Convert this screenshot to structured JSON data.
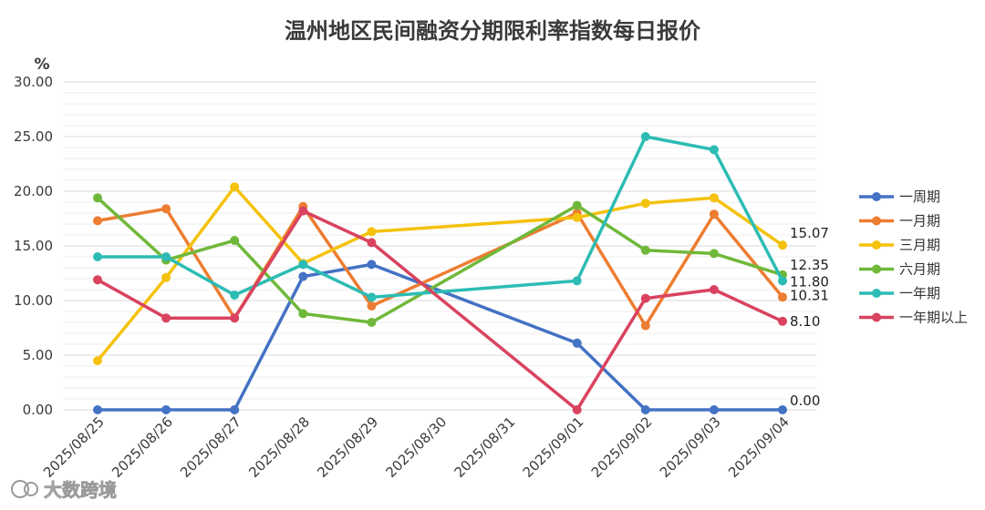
{
  "chart_data": {
    "type": "line",
    "title": "温州地区民间融资分期限利率指数每日报价",
    "ylabel": "%",
    "xlabel": "",
    "ylim": [
      0,
      30
    ],
    "yticks": [
      "0.00",
      "5.00",
      "10.00",
      "15.00",
      "20.00",
      "25.00",
      "30.00"
    ],
    "categories": [
      "2025/08/25",
      "2025/08/26",
      "2025/08/27",
      "2025/08/28",
      "2025/08/29",
      "2025/08/30",
      "2025/08/31",
      "2025/09/01",
      "2025/09/02",
      "2025/09/03",
      "2025/09/04"
    ],
    "grid": true,
    "legend_position": "right",
    "series": [
      {
        "name": "一周期",
        "color": "#4472c4",
        "values": [
          0,
          0,
          0,
          12.2,
          13.3,
          null,
          null,
          6.1,
          0,
          0,
          0
        ],
        "end_label": "0.00"
      },
      {
        "name": "一月期",
        "color": "#ed7d31",
        "values": [
          17.3,
          18.4,
          8.4,
          18.6,
          9.5,
          null,
          null,
          18.0,
          7.7,
          17.9,
          10.31
        ],
        "end_label": "10.31"
      },
      {
        "name": "三月期",
        "color": "#f4c20d",
        "values": [
          4.5,
          12.1,
          20.4,
          13.4,
          16.3,
          null,
          null,
          17.6,
          18.9,
          19.4,
          15.07
        ],
        "end_label": "15.07"
      },
      {
        "name": "六月期",
        "color": "#70b83a",
        "values": [
          19.4,
          13.7,
          15.5,
          8.8,
          8.0,
          null,
          null,
          18.7,
          14.6,
          14.3,
          12.35
        ],
        "end_label": "12.35"
      },
      {
        "name": "一年期",
        "color": "#2dbcb4",
        "values": [
          14.0,
          14.0,
          10.5,
          13.3,
          10.3,
          null,
          null,
          11.8,
          25.0,
          23.8,
          11.8
        ],
        "end_label": "11.80"
      },
      {
        "name": "一年期以上",
        "color": "#d9435f",
        "values": [
          11.9,
          8.4,
          8.4,
          18.2,
          15.3,
          null,
          null,
          0,
          10.2,
          11.0,
          8.1
        ],
        "end_label": "8.10"
      }
    ]
  },
  "watermark": {
    "text": "大数跨境",
    "icon": "ttkk-logo-icon"
  }
}
